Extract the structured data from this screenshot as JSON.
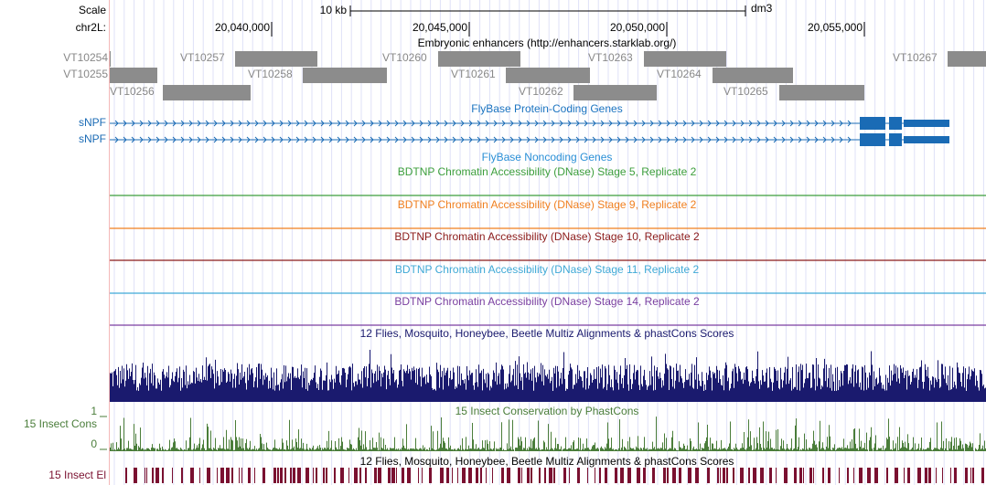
{
  "scale": {
    "label": "Scale",
    "bar": "10 kb",
    "assembly": "dm3"
  },
  "position": {
    "chrom": "chr2L:",
    "ticks": [
      "20,040,000",
      "20,045,000",
      "20,050,000",
      "20,055,000"
    ]
  },
  "enhancers": {
    "title": "Embryonic enhancers (http://enhancers.starklab.org/)",
    "items": [
      "VT10254",
      "VT10255",
      "VT10256",
      "VT10257",
      "VT10258",
      "VT10260",
      "VT10261",
      "VT10262",
      "VT10263",
      "VT10264",
      "VT10265",
      "VT10267"
    ]
  },
  "protein_coding": {
    "title": "FlyBase Protein-Coding Genes",
    "genes": [
      "sNPF",
      "sNPF"
    ]
  },
  "noncoding": {
    "title": "FlyBase Noncoding Genes"
  },
  "dnase": [
    "BDTNP Chromatin Accessibility (DNase) Stage 5, Replicate 2",
    "BDTNP Chromatin Accessibility (DNase) Stage 9, Replicate 2",
    "BDTNP Chromatin Accessibility (DNase) Stage 10, Replicate 2",
    "BDTNP Chromatin Accessibility (DNase) Stage 11, Replicate 2",
    "BDTNP Chromatin Accessibility (DNase) Stage 14, Replicate 2"
  ],
  "multiz": {
    "title": "12 Flies, Mosquito, Honeybee, Beetle Multiz Alignments & phastCons Scores"
  },
  "conservation": {
    "title": "15 Insect Conservation by PhastCons",
    "label": "15 Insect Cons",
    "ymax": 1,
    "ymin": 0
  },
  "elements": {
    "title": "12 Flies, Mosquito, Honeybee, Beetle Multiz Alignments & phastCons Scores",
    "label": "15 Insect El"
  }
}
